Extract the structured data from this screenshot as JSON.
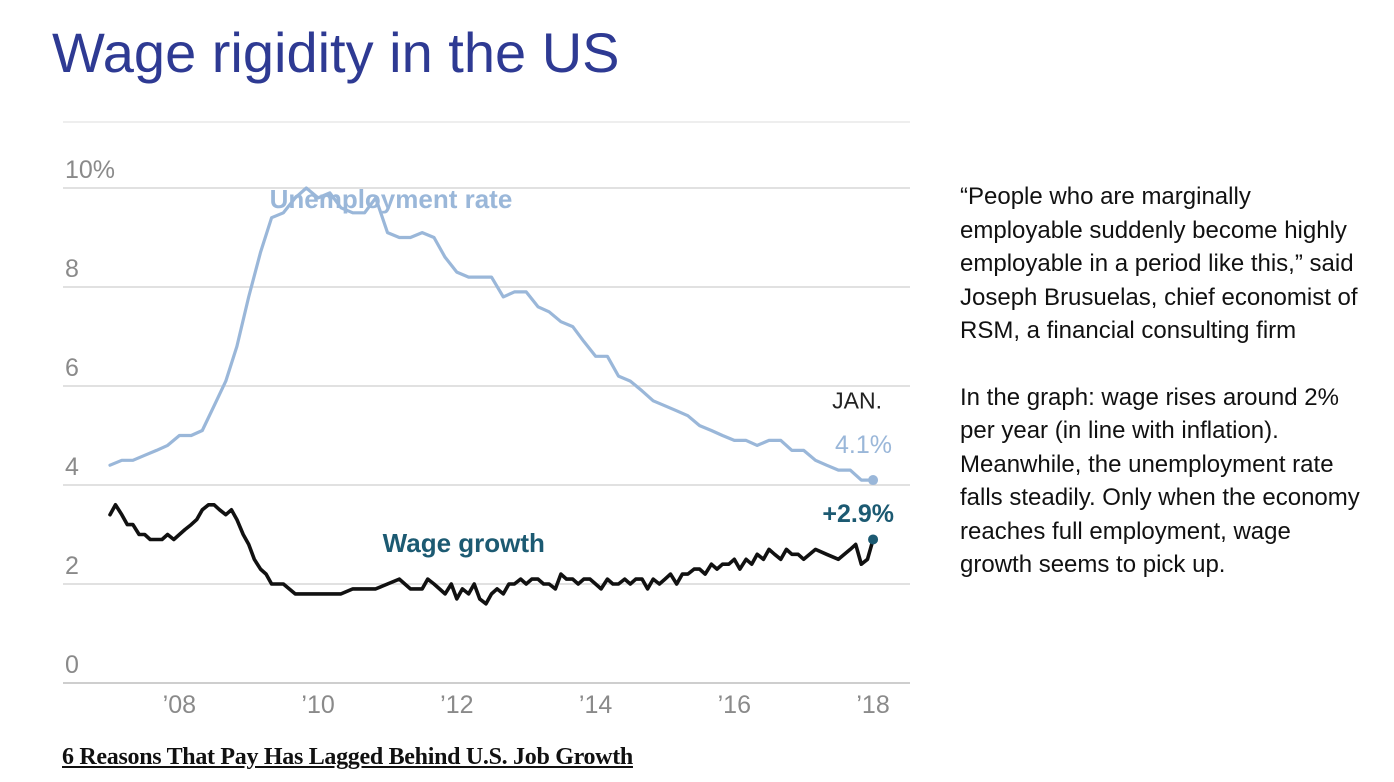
{
  "slide": {
    "title": "Wage rigidity in the US",
    "source_link": "6 Reasons That Pay Has Lagged Behind U.S. Job Growth",
    "quote": "“People who are marginally employable suddenly become highly employable in a period like this,” said Joseph Brusuelas, chief economist of RSM, a financial consulting firm",
    "commentary": "In the graph: wage rises around 2% per year (in line with inflation). Meanwhile, the unemployment rate falls steadily. Only when the economy reaches full employment, wage growth seems to pick up."
  },
  "chart_data": {
    "type": "line",
    "title": "",
    "xlabel": "",
    "ylabel": "",
    "xlim": [
      2007.0,
      2018.1
    ],
    "ylim": [
      0,
      10
    ],
    "grid": true,
    "y_ticks": [
      0,
      2,
      4,
      6,
      8,
      10
    ],
    "y_tick_labels": [
      "0",
      "2",
      "4",
      "6",
      "8",
      "10%"
    ],
    "x_ticks": [
      2008,
      2010,
      2012,
      2014,
      2016,
      2018
    ],
    "x_tick_labels": [
      "’08",
      "’10",
      "’12",
      "’14",
      "’16",
      "’18"
    ],
    "end_label_month": "JAN.",
    "series": [
      {
        "name": "Unemployment rate",
        "color": "#9ab7d9",
        "end_label": "4.1%",
        "x": [
          2007.0,
          2007.17,
          2007.33,
          2007.5,
          2007.67,
          2007.83,
          2008.0,
          2008.17,
          2008.33,
          2008.5,
          2008.67,
          2008.83,
          2009.0,
          2009.17,
          2009.33,
          2009.5,
          2009.67,
          2009.83,
          2010.0,
          2010.17,
          2010.33,
          2010.5,
          2010.67,
          2010.83,
          2011.0,
          2011.17,
          2011.33,
          2011.5,
          2011.67,
          2011.83,
          2012.0,
          2012.17,
          2012.33,
          2012.5,
          2012.67,
          2012.83,
          2013.0,
          2013.17,
          2013.33,
          2013.5,
          2013.67,
          2013.83,
          2014.0,
          2014.17,
          2014.33,
          2014.5,
          2014.67,
          2014.83,
          2015.0,
          2015.17,
          2015.33,
          2015.5,
          2015.67,
          2015.83,
          2016.0,
          2016.17,
          2016.33,
          2016.5,
          2016.67,
          2016.83,
          2017.0,
          2017.17,
          2017.33,
          2017.5,
          2017.67,
          2017.83,
          2018.0
        ],
        "values": [
          4.4,
          4.5,
          4.5,
          4.6,
          4.7,
          4.8,
          5.0,
          5.0,
          5.1,
          5.6,
          6.1,
          6.8,
          7.8,
          8.7,
          9.4,
          9.5,
          9.8,
          10.0,
          9.8,
          9.9,
          9.6,
          9.5,
          9.5,
          9.8,
          9.1,
          9.0,
          9.0,
          9.1,
          9.0,
          8.6,
          8.3,
          8.2,
          8.2,
          8.2,
          7.8,
          7.9,
          7.9,
          7.6,
          7.5,
          7.3,
          7.2,
          6.9,
          6.6,
          6.6,
          6.2,
          6.1,
          5.9,
          5.7,
          5.6,
          5.5,
          5.4,
          5.2,
          5.1,
          5.0,
          4.9,
          4.9,
          4.8,
          4.9,
          4.9,
          4.7,
          4.7,
          4.5,
          4.4,
          4.3,
          4.3,
          4.1,
          4.1
        ]
      },
      {
        "name": "Wage growth",
        "color": "#111111",
        "end_label": "+2.9%",
        "end_marker_color": "#1c5a72",
        "x": [
          2007.0,
          2007.08,
          2007.17,
          2007.25,
          2007.33,
          2007.42,
          2007.5,
          2007.58,
          2007.67,
          2007.75,
          2007.83,
          2007.92,
          2008.0,
          2008.08,
          2008.17,
          2008.25,
          2008.33,
          2008.42,
          2008.5,
          2008.58,
          2008.67,
          2008.75,
          2008.83,
          2008.92,
          2009.0,
          2009.08,
          2009.17,
          2009.25,
          2009.33,
          2009.5,
          2009.67,
          2009.83,
          2010.0,
          2010.17,
          2010.33,
          2010.5,
          2010.67,
          2010.83,
          2011.0,
          2011.17,
          2011.33,
          2011.5,
          2011.58,
          2011.67,
          2011.75,
          2011.83,
          2011.92,
          2012.0,
          2012.08,
          2012.17,
          2012.25,
          2012.33,
          2012.42,
          2012.5,
          2012.58,
          2012.67,
          2012.75,
          2012.83,
          2012.92,
          2013.0,
          2013.08,
          2013.17,
          2013.25,
          2013.33,
          2013.42,
          2013.5,
          2013.58,
          2013.67,
          2013.75,
          2013.83,
          2013.92,
          2014.0,
          2014.08,
          2014.17,
          2014.25,
          2014.33,
          2014.42,
          2014.5,
          2014.58,
          2014.67,
          2014.75,
          2014.83,
          2014.92,
          2015.0,
          2015.08,
          2015.17,
          2015.25,
          2015.33,
          2015.42,
          2015.5,
          2015.58,
          2015.67,
          2015.75,
          2015.83,
          2015.92,
          2016.0,
          2016.08,
          2016.17,
          2016.25,
          2016.33,
          2016.42,
          2016.5,
          2016.58,
          2016.67,
          2016.75,
          2016.83,
          2016.92,
          2017.0,
          2017.17,
          2017.33,
          2017.5,
          2017.67,
          2017.75,
          2017.83,
          2017.92,
          2018.0
        ],
        "values": [
          3.4,
          3.6,
          3.4,
          3.2,
          3.2,
          3.0,
          3.0,
          2.9,
          2.9,
          2.9,
          3.0,
          2.9,
          3.0,
          3.1,
          3.2,
          3.3,
          3.5,
          3.6,
          3.6,
          3.5,
          3.4,
          3.5,
          3.3,
          3.0,
          2.8,
          2.5,
          2.3,
          2.2,
          2.0,
          2.0,
          1.8,
          1.8,
          1.8,
          1.8,
          1.8,
          1.9,
          1.9,
          1.9,
          2.0,
          2.1,
          1.9,
          1.9,
          2.1,
          2.0,
          1.9,
          1.8,
          2.0,
          1.7,
          1.9,
          1.8,
          2.0,
          1.7,
          1.6,
          1.8,
          1.9,
          1.8,
          2.0,
          2.0,
          2.1,
          2.0,
          2.1,
          2.1,
          2.0,
          2.0,
          1.9,
          2.2,
          2.1,
          2.1,
          2.0,
          2.1,
          2.1,
          2.0,
          1.9,
          2.1,
          2.0,
          2.0,
          2.1,
          2.0,
          2.1,
          2.1,
          1.9,
          2.1,
          2.0,
          2.1,
          2.2,
          2.0,
          2.2,
          2.2,
          2.3,
          2.3,
          2.2,
          2.4,
          2.3,
          2.4,
          2.4,
          2.5,
          2.3,
          2.5,
          2.4,
          2.6,
          2.5,
          2.7,
          2.6,
          2.5,
          2.7,
          2.6,
          2.6,
          2.5,
          2.7,
          2.6,
          2.5,
          2.7,
          2.8,
          2.4,
          2.5,
          2.9
        ]
      }
    ]
  }
}
